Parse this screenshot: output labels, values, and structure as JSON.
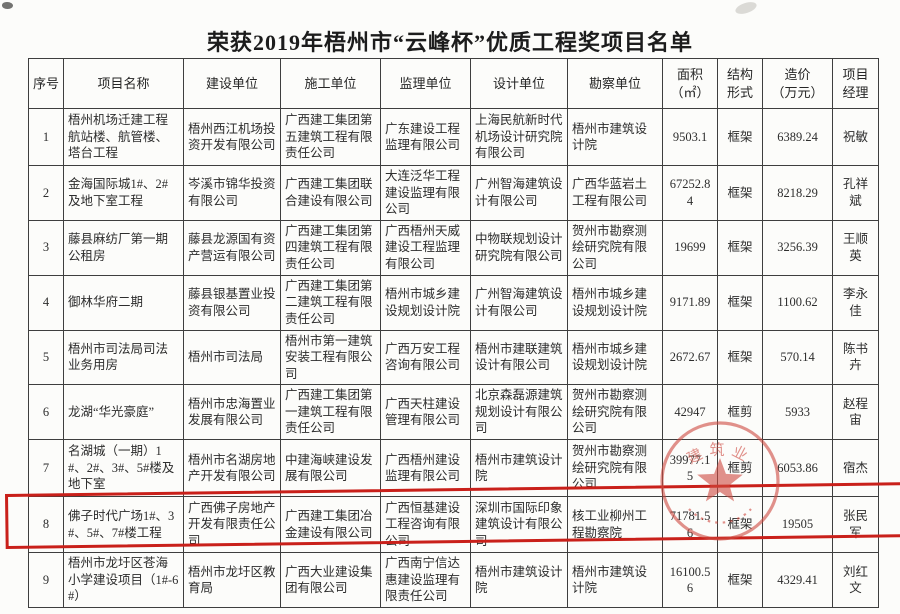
{
  "title": "荣获2019年梧州市“云峰杯”优质工程奖项目名单",
  "table": {
    "headers": [
      "序号",
      "项目名称",
      "建设单位",
      "施工单位",
      "监理单位",
      "设计单位",
      "勘察单位",
      "面积\n（㎡）",
      "结构\n形式",
      "造价\n（万元）",
      "项目\n经理"
    ],
    "rows": [
      {
        "no": "1",
        "name": "梧州机场迁建工程航站楼、航管楼、塔台工程",
        "builder": "梧州西江机场投资开发有限公司",
        "contractor": "广西建工集团第五建筑工程有限责任公司",
        "supervisor": "广东建设工程监理有限公司",
        "designer": "上海民航新时代机场设计研究院有限公司",
        "surveyor": "梧州市建筑设计院",
        "area": "9503.1",
        "structure": "框架",
        "cost": "6389.24",
        "manager": "祝敏"
      },
      {
        "no": "2",
        "name": "金海国际城1#、2#及地下室工程",
        "builder": "岑溪市锦华投资有限公司",
        "contractor": "广西建工集团联合建设有限公司",
        "supervisor": "大连泛华工程建设监理有限公司",
        "designer": "广州智海建筑设计有限公司",
        "surveyor": "广西华蓝岩土工程有限公司",
        "area": "67252.84",
        "structure": "框架",
        "cost": "8218.29",
        "manager": "孔祥斌"
      },
      {
        "no": "3",
        "name": "藤县麻纺厂第一期公租房",
        "builder": "藤县龙源国有资产营运有限公司",
        "contractor": "广西建工集团第四建筑工程有限责任公司",
        "supervisor": "广西梧州天威建设工程监理有限公司",
        "designer": "中物联规划设计研究院有限公司",
        "surveyor": "贺州市勘察测绘研究院有限公司",
        "area": "19699",
        "structure": "框架",
        "cost": "3256.39",
        "manager": "王顺英"
      },
      {
        "no": "4",
        "name": "御林华府二期",
        "builder": "藤县银基置业投资有限公司",
        "contractor": "广西建工集团第二建筑工程有限责任公司",
        "supervisor": "梧州市城乡建设规划设计院",
        "designer": "广州智海建筑设计有限公司",
        "surveyor": "梧州市城乡建设规划设计院",
        "area": "9171.89",
        "structure": "框架",
        "cost": "1100.62",
        "manager": "李永佳"
      },
      {
        "no": "5",
        "name": "梧州市司法局司法业务用房",
        "builder": "梧州市司法局",
        "contractor": "梧州市第一建筑安装工程有限公司",
        "supervisor": "广西万安工程咨询有限公司",
        "designer": "梧州市建联建筑设计有限公司",
        "surveyor": "梧州市城乡建设规划设计院",
        "area": "2672.67",
        "structure": "框架",
        "cost": "570.14",
        "manager": "陈书卉"
      },
      {
        "no": "6",
        "name": "龙湖“华光豪庭”",
        "builder": "梧州市忠海置业发展有限公司",
        "contractor": "广西建工集团第一建筑工程有限责任公司",
        "supervisor": "广西天柱建设管理有限公司",
        "designer": "北京森磊源建筑规划设计有限公司",
        "surveyor": "贺州市勘察测绘研究院有限公司",
        "area": "42947",
        "structure": "框剪",
        "cost": "5933",
        "manager": "赵程宙"
      },
      {
        "no": "7",
        "name": "名湖城（一期）1#、2#、3#、5#楼及地下室",
        "builder": "梧州市名湖房地产开发有限公司",
        "contractor": "中建海峡建设发展有限公司",
        "supervisor": "广西梧州建设监理有限公司",
        "designer": "梧州市建筑设计院",
        "surveyor": "贺州市勘察测绘研究院有限公司",
        "area": "39977.15",
        "structure": "框剪",
        "cost": "6053.86",
        "manager": "宿杰"
      },
      {
        "no": "8",
        "name": "佛子时代广场1#、3#、5#、7#楼工程",
        "builder": "广西佛子房地产开发有限责任公司",
        "contractor": "广西建工集团冶金建设有限公司",
        "supervisor": "广西恒基建设工程咨询有限公司",
        "designer": "深圳市国际印象建筑设计有限公司",
        "surveyor": "核工业柳州工程勘察院",
        "area": "71781.56",
        "structure": "框架",
        "cost": "19505",
        "manager": "张民军"
      },
      {
        "no": "9",
        "name": "梧州市龙圩区苍海小学建设项目（1#-6#）",
        "builder": "梧州市龙圩区教育局",
        "contractor": "广西大业建设集团有限公司",
        "supervisor": "广西南宁信达惠建设监理有限责任公司",
        "designer": "梧州市建筑设计院",
        "surveyor": "梧州市建筑设计院",
        "area": "16100.56",
        "structure": "框架",
        "cost": "4329.41",
        "manager": "刘红文"
      }
    ]
  },
  "highlight": {
    "highlighted_row_no": "8",
    "color": "#c9201a"
  },
  "seal": {
    "text": "建筑业",
    "color": "#cf4a40"
  }
}
